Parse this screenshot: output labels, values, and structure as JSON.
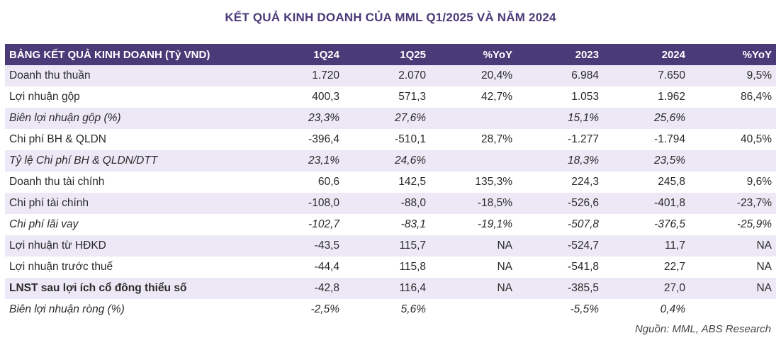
{
  "title": "KẾT QUẢ KINH DOANH CỦA MML Q1/2025 VÀ NĂM 2024",
  "table": {
    "headers": [
      "BẢNG KẾT QUẢ KINH DOANH (Tỷ VND)",
      "1Q24",
      "1Q25",
      "%YoY",
      "2023",
      "2024",
      "%YoY"
    ],
    "rows": [
      {
        "cells": [
          "Doanh thu thuần",
          "1.720",
          "2.070",
          "20,4%",
          "6.984",
          "7.650",
          "9,5%"
        ],
        "shade": true,
        "style": "normal"
      },
      {
        "cells": [
          "Lợi nhuận gộp",
          "400,3",
          "571,3",
          "42,7%",
          "1.053",
          "1.962",
          "86,4%"
        ],
        "shade": false,
        "style": "normal"
      },
      {
        "cells": [
          "Biên lợi nhuận gộp (%)",
          "23,3%",
          "27,6%",
          "",
          "15,1%",
          "25,6%",
          ""
        ],
        "shade": true,
        "style": "italic"
      },
      {
        "cells": [
          "Chi phí BH & QLDN",
          "-396,4",
          "-510,1",
          "28,7%",
          "-1.277",
          "-1.794",
          "40,5%"
        ],
        "shade": false,
        "style": "normal"
      },
      {
        "cells": [
          "Tỷ lệ Chi phí BH & QLDN/DTT",
          "23,1%",
          "24,6%",
          "",
          "18,3%",
          "23,5%",
          ""
        ],
        "shade": true,
        "style": "italic"
      },
      {
        "cells": [
          "Doanh thu tài chính",
          "60,6",
          "142,5",
          "135,3%",
          "224,3",
          "245,8",
          "9,6%"
        ],
        "shade": false,
        "style": "normal"
      },
      {
        "cells": [
          "Chi phí tài chính",
          "-108,0",
          "-88,0",
          "-18,5%",
          "-526,6",
          "-401,8",
          "-23,7%"
        ],
        "shade": true,
        "style": "normal"
      },
      {
        "cells": [
          "Chi phí lãi vay",
          "-102,7",
          "-83,1",
          "-19,1%",
          "-507,8",
          "-376,5",
          "-25,9%"
        ],
        "shade": false,
        "style": "italic"
      },
      {
        "cells": [
          "Lợi nhuận từ HĐKD",
          "-43,5",
          "115,7",
          "NA",
          "-524,7",
          "11,7",
          "NA"
        ],
        "shade": true,
        "style": "normal"
      },
      {
        "cells": [
          "Lợi nhuận trước thuế",
          "-44,4",
          "115,8",
          "NA",
          "-541,8",
          "22,7",
          "NA"
        ],
        "shade": false,
        "style": "normal"
      },
      {
        "cells": [
          "LNST sau lợi ích cổ đông thiểu số",
          "-42,8",
          "116,4",
          "NA",
          "-385,5",
          "27,0",
          "NA"
        ],
        "shade": true,
        "style": "bold"
      },
      {
        "cells": [
          "Biên lợi nhuận ròng (%)",
          "-2,5%",
          "5,6%",
          "",
          "-5,5%",
          "0,4%",
          ""
        ],
        "shade": false,
        "style": "italic"
      }
    ]
  },
  "source": "Nguồn:  MML, ABS Research"
}
